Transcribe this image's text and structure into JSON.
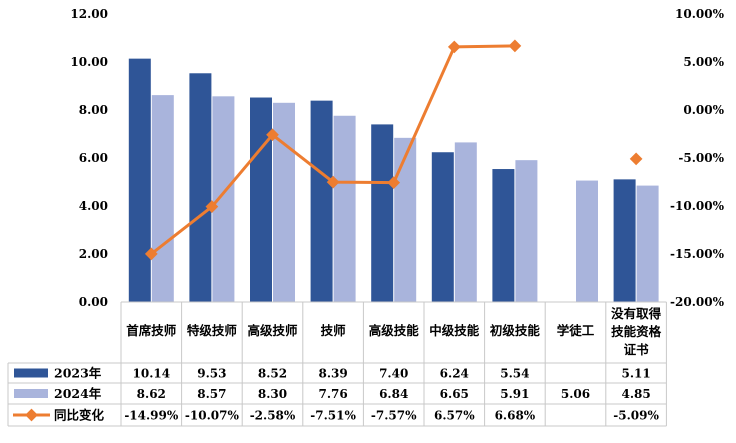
{
  "chart_data": {
    "type": "bar",
    "categories": [
      "首席技师",
      "特级技师",
      "高级技师",
      "技师",
      "高级技能",
      "中级技能",
      "初级技能",
      "学徒工",
      "没有取得技能资格证书"
    ],
    "category_lines": [
      [
        "首席技师"
      ],
      [
        "特级技师"
      ],
      [
        "高级技师"
      ],
      [
        "技师"
      ],
      [
        "高级技能"
      ],
      [
        "中级技能"
      ],
      [
        "初级技能"
      ],
      [
        "学徒工"
      ],
      [
        "没有取得",
        "技能资格",
        "证书"
      ]
    ],
    "series": [
      {
        "name": "2023年",
        "kind": "bar",
        "axis": "left",
        "color": "#2f5597",
        "values": [
          10.14,
          9.53,
          8.52,
          8.39,
          7.4,
          6.24,
          5.54,
          null,
          5.11
        ],
        "labels": [
          "10.14",
          "9.53",
          "8.52",
          "8.39",
          "7.40",
          "6.24",
          "5.54",
          "",
          "5.11"
        ]
      },
      {
        "name": "2024年",
        "kind": "bar",
        "axis": "left",
        "color": "#a9b4dc",
        "values": [
          8.62,
          8.57,
          8.3,
          7.76,
          6.84,
          6.65,
          5.91,
          5.06,
          4.85
        ],
        "labels": [
          "8.62",
          "8.57",
          "8.30",
          "7.76",
          "6.84",
          "6.65",
          "5.91",
          "5.06",
          "4.85"
        ]
      },
      {
        "name": "同比变化",
        "kind": "line",
        "axis": "right",
        "color": "#ed7d31",
        "values": [
          -14.99,
          -10.07,
          -2.58,
          -7.51,
          -7.57,
          6.57,
          6.68,
          null,
          -5.09
        ],
        "labels": [
          "-14.99%",
          "-10.07%",
          "-2.58%",
          "-7.51%",
          "-7.57%",
          "6.57%",
          "6.68%",
          "",
          "-5.09%"
        ],
        "break_before_index": 8
      }
    ],
    "y_left": {
      "range": [
        0,
        12
      ],
      "ticks": [
        "0.00",
        "2.00",
        "4.00",
        "6.00",
        "8.00",
        "10.00",
        "12.00"
      ]
    },
    "y_right": {
      "range": [
        -20,
        10
      ],
      "ticks": [
        "-20.00%",
        "-15.00%",
        "-10.00%",
        "-5.00%",
        "0.00%",
        "5.00%",
        "10.00%"
      ]
    },
    "grid": false,
    "legend": "in data table below plot",
    "xlabel": "",
    "ylabel": ""
  }
}
